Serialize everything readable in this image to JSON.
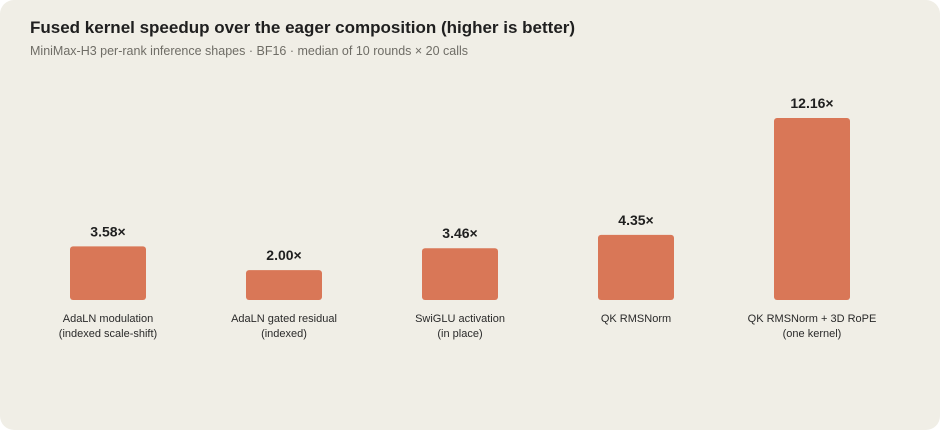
{
  "header": {
    "title": "Fused kernel speedup over the eager composition (higher is better)",
    "subtitle": "MiniMax-H3 per-rank inference shapes · BF16 · median of 10 rounds × 20 calls"
  },
  "colors": {
    "background": "#f0eee6",
    "bar": "#d97757"
  },
  "chart_data": {
    "type": "bar",
    "title": "Fused kernel speedup over the eager composition (higher is better)",
    "subtitle": "MiniMax-H3 per-rank inference shapes · BF16 · median of 10 rounds × 20 calls",
    "categories": [
      [
        "AdaLN modulation",
        "(indexed scale-shift)"
      ],
      [
        "AdaLN gated residual",
        "(indexed)"
      ],
      [
        "SwiGLU activation",
        "(in place)"
      ],
      [
        "QK RMSNorm"
      ],
      [
        "QK RMSNorm + 3D RoPE",
        "(one kernel)"
      ]
    ],
    "values": [
      3.58,
      2.0,
      3.46,
      4.35,
      12.16
    ],
    "value_labels": [
      "3.58×",
      "2.00×",
      "3.46×",
      "4.35×",
      "12.16×"
    ],
    "xlabel": "",
    "ylabel": "",
    "ylim": [
      0,
      12.16
    ],
    "grid": false,
    "legend": "none"
  }
}
